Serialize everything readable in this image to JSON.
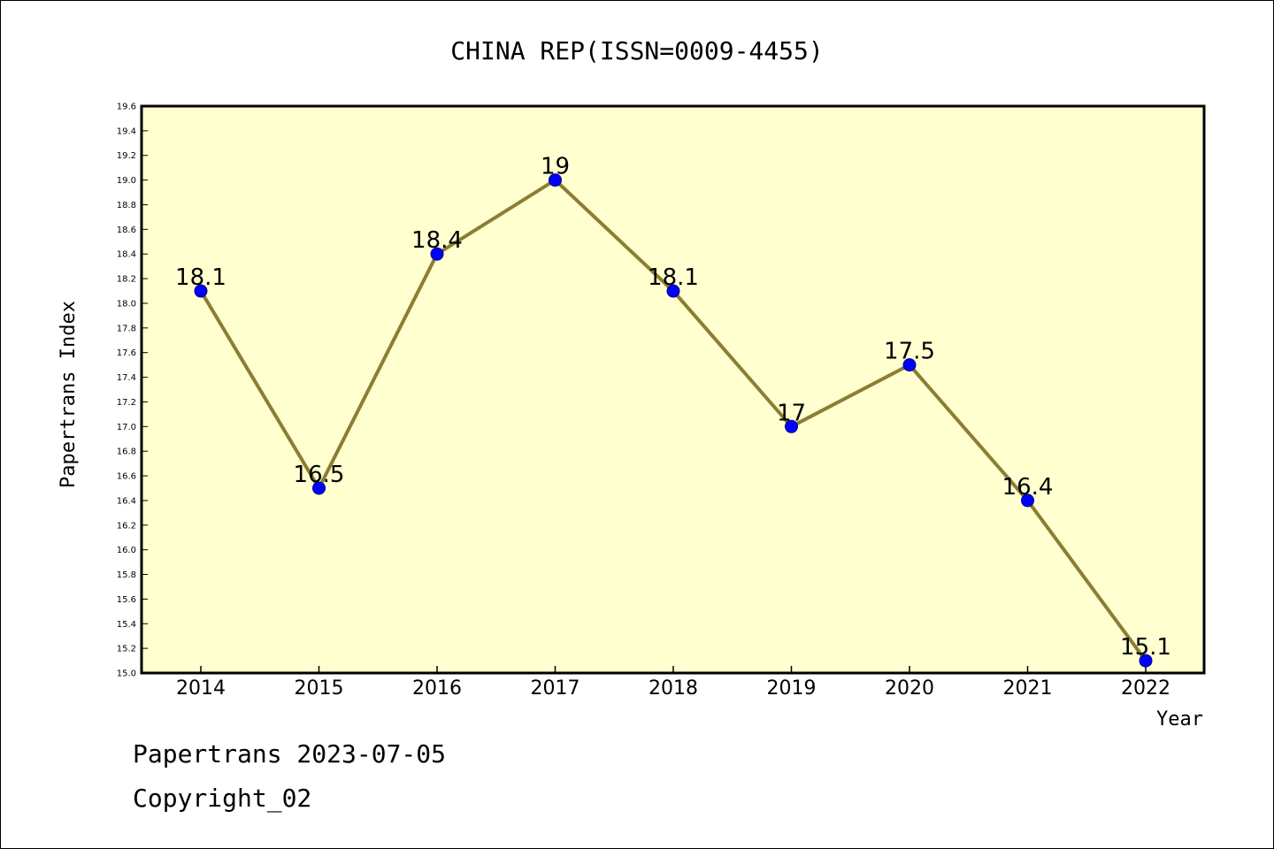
{
  "chart_data": {
    "type": "line",
    "title": "CHINA REP(ISSN=0009-4455)",
    "xlabel": "Year",
    "ylabel": "Papertrans Index",
    "categories": [
      "2014",
      "2015",
      "2016",
      "2017",
      "2018",
      "2019",
      "2020",
      "2021",
      "2022"
    ],
    "series": [
      {
        "values": [
          18.1,
          16.5,
          18.4,
          19.0,
          18.1,
          17.0,
          17.5,
          16.4,
          15.1
        ],
        "data_labels": [
          "18.1",
          "16.5",
          "18.4",
          "19",
          "18.1",
          "17",
          "17.5",
          "16.4",
          "15.1"
        ]
      }
    ],
    "ylim": [
      15.0,
      19.6
    ],
    "ytick_step": 0.2,
    "grid": false,
    "legend": "none",
    "colors": {
      "plot_background": "#ffffd0",
      "line": "#8b7d33",
      "marker": "#0000ff",
      "marker_edge": "#00008b"
    }
  },
  "footer": {
    "line1": "Papertrans 2023-07-05",
    "line2": "Copyright_02"
  }
}
